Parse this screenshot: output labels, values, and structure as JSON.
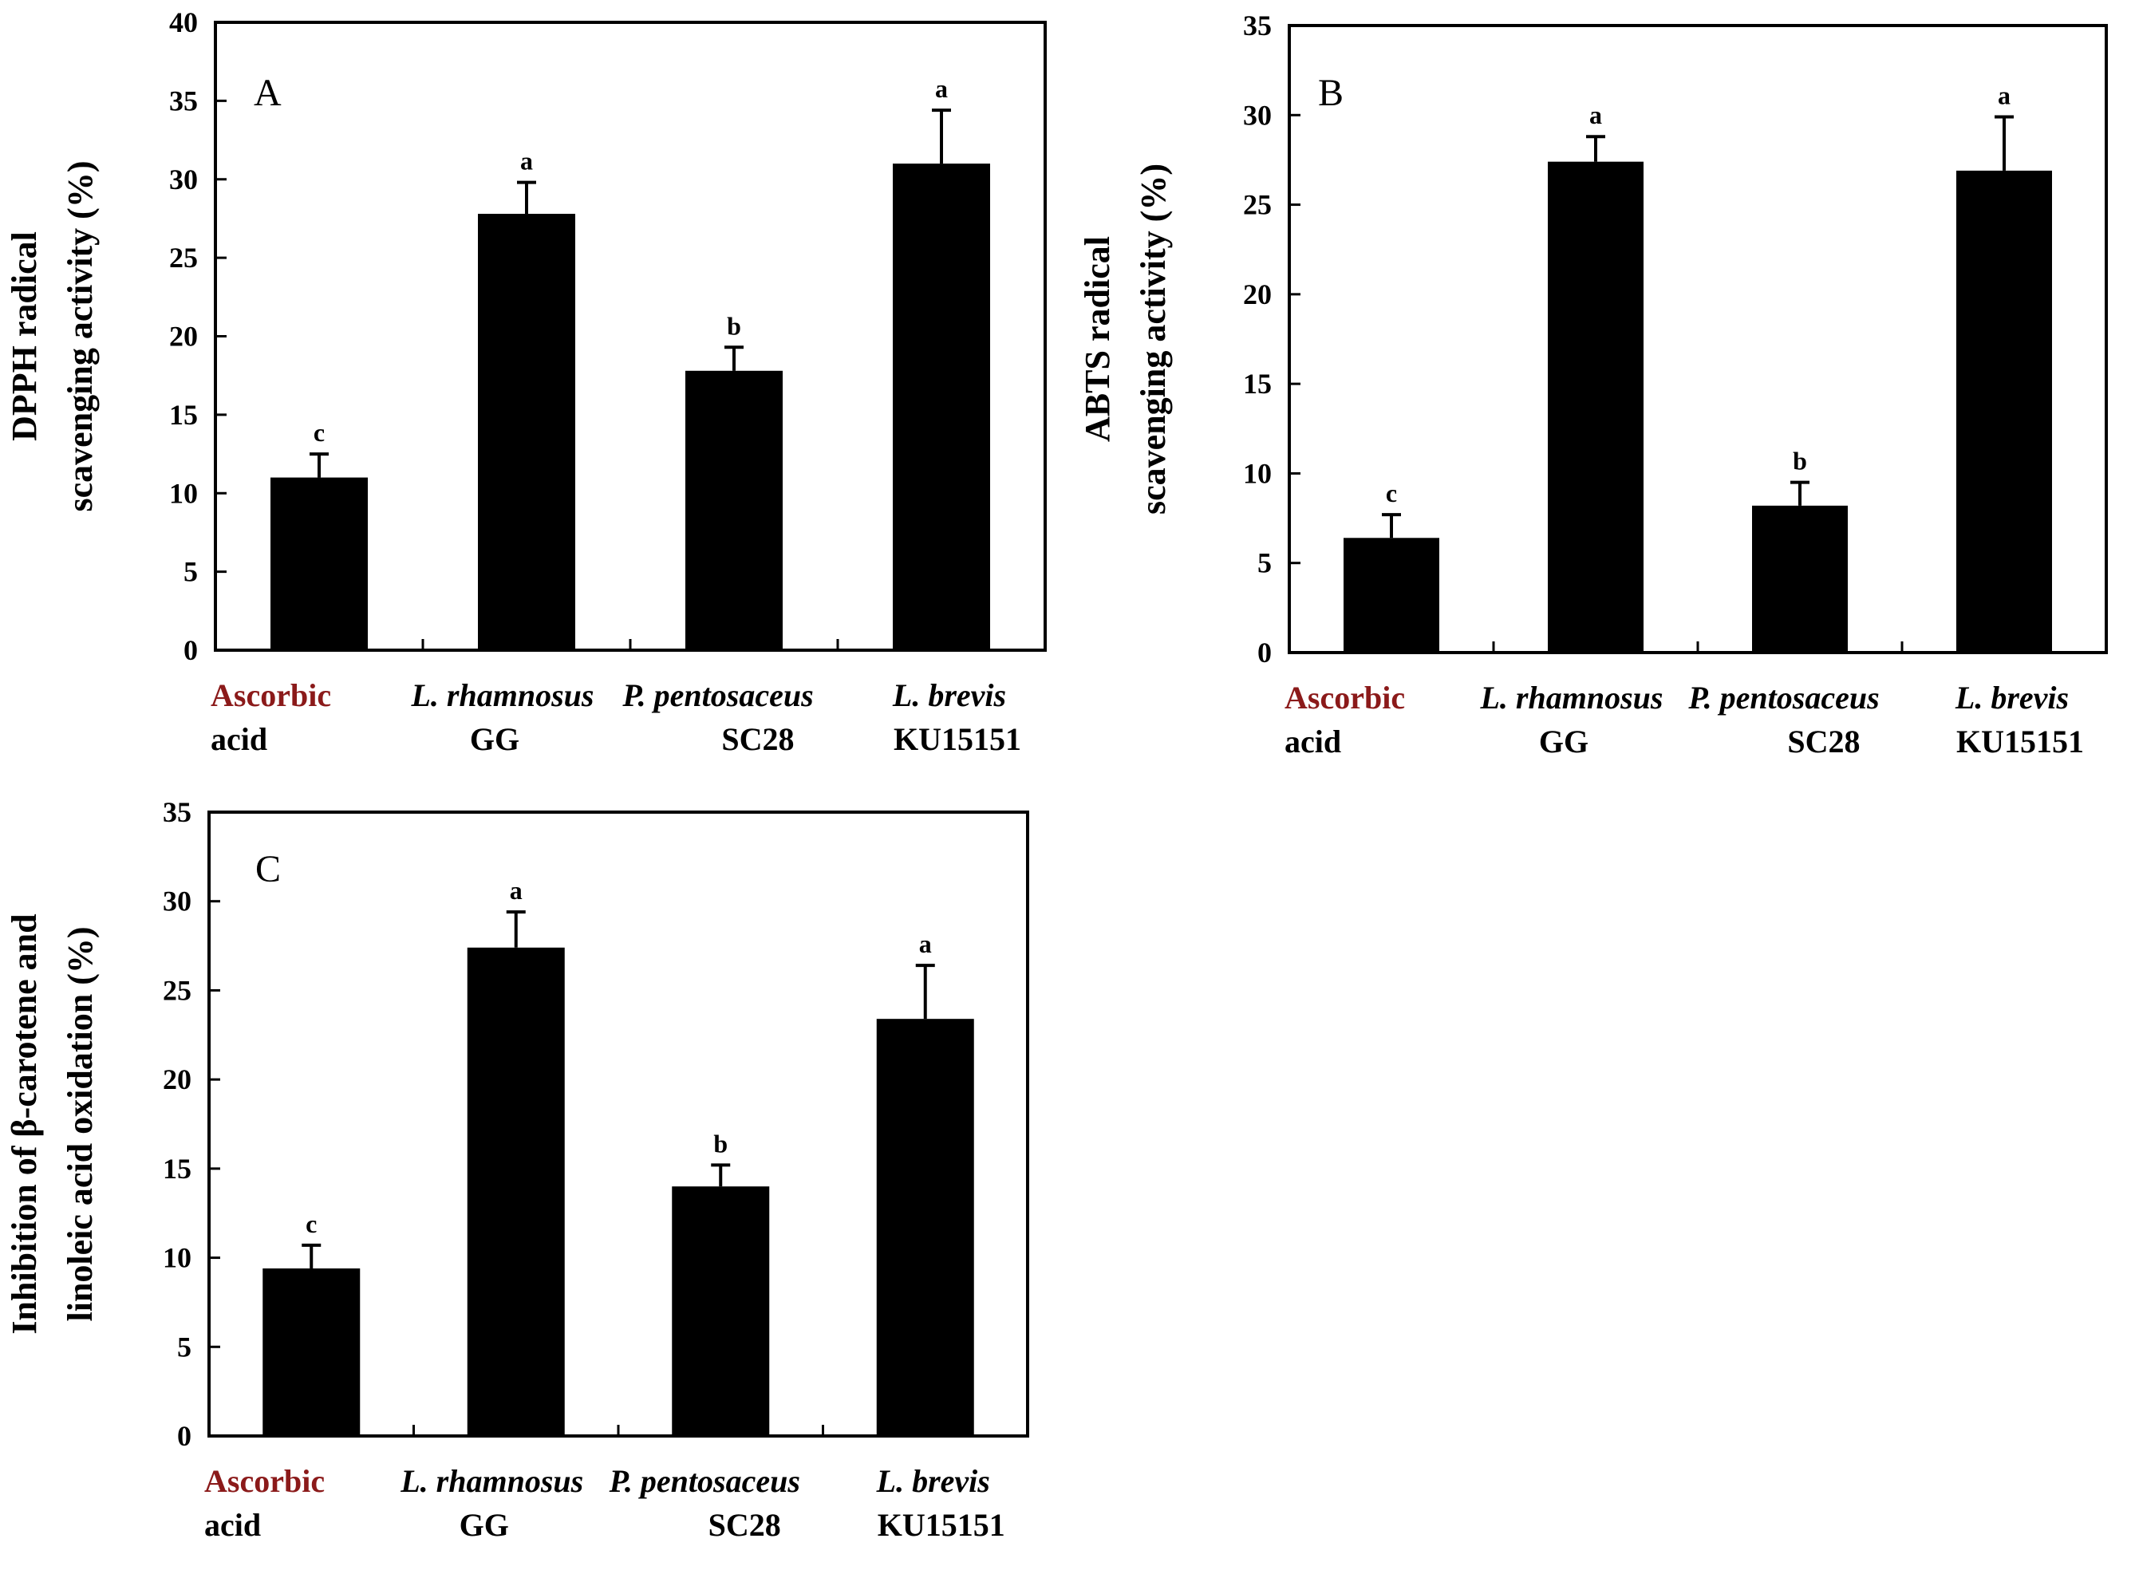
{
  "chart_data": [
    {
      "type": "bar",
      "panel_label": "A",
      "ylabel_lines": [
        "DPPH radical",
        "scavenging activity (%)"
      ],
      "ylim": [
        0,
        40
      ],
      "yticks": [
        "0",
        "5",
        "10",
        "15",
        "20",
        "25",
        "30",
        "35",
        "40"
      ],
      "categories": [
        {
          "line1": "Ascorbic",
          "line2": "acid",
          "italic1": false
        },
        {
          "line1": "L. rhamnosus",
          "line2": "GG",
          "italic1": true
        },
        {
          "line1": "P. pentosaceus",
          "line2": "SC28",
          "italic1": true
        },
        {
          "line1": "L. brevis",
          "line2": "KU15151",
          "italic1": true
        }
      ],
      "values": [
        11.0,
        27.8,
        17.8,
        31.0
      ],
      "errors": [
        1.5,
        2.0,
        1.5,
        3.4
      ],
      "significance": [
        "c",
        "a",
        "b",
        "a"
      ]
    },
    {
      "type": "bar",
      "panel_label": "B",
      "ylabel_lines": [
        "ABTS radical",
        "scavenging activity (%)"
      ],
      "ylim": [
        0,
        35
      ],
      "yticks": [
        "0",
        "5",
        "10",
        "15",
        "20",
        "25",
        "30",
        "35"
      ],
      "categories": [
        {
          "line1": "Ascorbic",
          "line2": "acid",
          "italic1": false
        },
        {
          "line1": "L. rhamnosus",
          "line2": "GG",
          "italic1": true
        },
        {
          "line1": "P. pentosaceus",
          "line2": "SC28",
          "italic1": true
        },
        {
          "line1": "L. brevis",
          "line2": "KU15151",
          "italic1": true
        }
      ],
      "values": [
        6.4,
        27.4,
        8.2,
        26.9
      ],
      "errors": [
        1.3,
        1.4,
        1.3,
        3.0
      ],
      "significance": [
        "c",
        "a",
        "b",
        "a"
      ]
    },
    {
      "type": "bar",
      "panel_label": "C",
      "ylabel_lines": [
        "Inhibition of β-carotene and",
        "linoleic acid oxidation (%)"
      ],
      "ylim": [
        0,
        35
      ],
      "yticks": [
        "0",
        "5",
        "10",
        "15",
        "20",
        "25",
        "30",
        "35"
      ],
      "categories": [
        {
          "line1": "Ascorbic",
          "line2": "acid",
          "italic1": false
        },
        {
          "line1": "L. rhamnosus",
          "line2": "GG",
          "italic1": true
        },
        {
          "line1": "P. pentosaceus",
          "line2": "SC28",
          "italic1": true
        },
        {
          "line1": "L. brevis",
          "line2": "KU15151",
          "italic1": true
        }
      ],
      "values": [
        9.4,
        27.4,
        14.0,
        23.4
      ],
      "errors": [
        1.3,
        2.0,
        1.2,
        3.0
      ],
      "significance": [
        "c",
        "a",
        "b",
        "a"
      ]
    }
  ],
  "colors": {
    "bar": "#000000",
    "axis": "#000000",
    "cat_first": "#8b1a1a"
  }
}
